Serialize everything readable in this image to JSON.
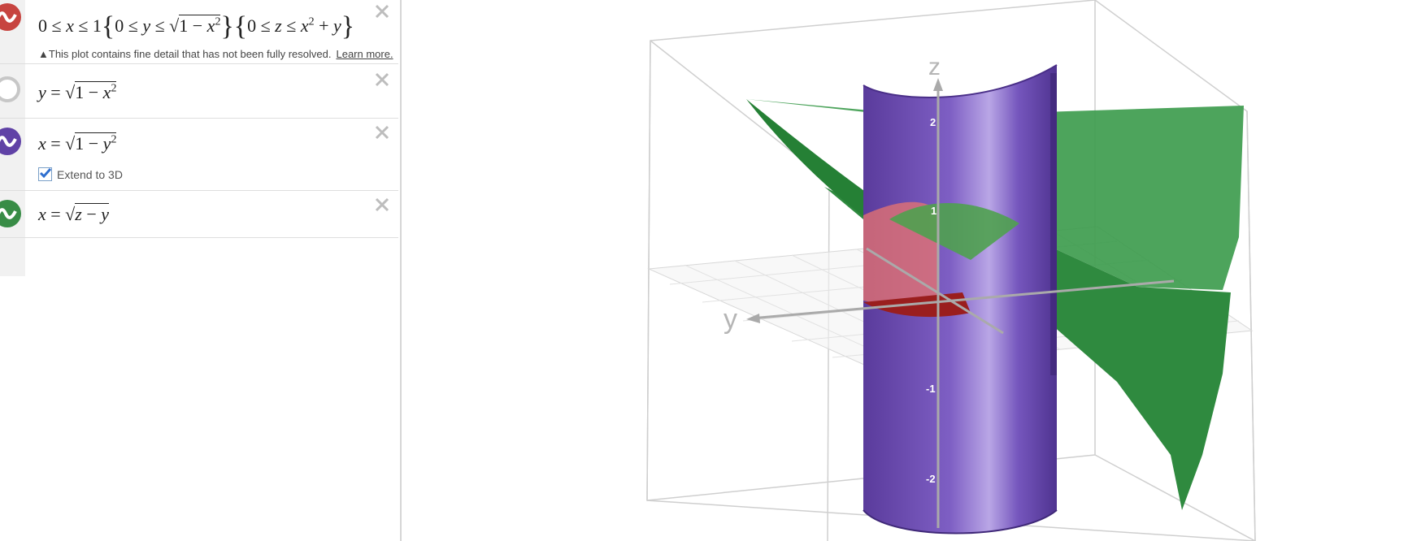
{
  "expressions": [
    {
      "color": "#c74440",
      "math": [
        "0 ≤ ",
        "x",
        " ≤ 1",
        "{",
        "0 ≤ ",
        "y",
        " ≤ √",
        "1 − ",
        "x",
        "2",
        "}",
        "{",
        "0 ≤ ",
        "z",
        " ≤ ",
        "x",
        "2",
        " + ",
        "y",
        "}"
      ],
      "warning": "This plot contains fine detail that has not been fully resolved.",
      "learn_more": "Learn more."
    },
    {
      "color": "#c7c7c7",
      "math": [
        "y",
        " = √",
        "1 − ",
        "x",
        "2"
      ]
    },
    {
      "color": "#6042a6",
      "math": [
        "x",
        " = √",
        "1 − ",
        "y",
        "2"
      ],
      "extend_label": "Extend to 3D",
      "extend_checked": true
    },
    {
      "color": "#388c46",
      "math": [
        "x",
        " = √",
        "z",
        " − ",
        "y"
      ]
    }
  ],
  "graph": {
    "axis_labels": {
      "z": "z",
      "y": "y"
    },
    "z_ticks": [
      "2",
      "1",
      "-1",
      "-2"
    ],
    "colors": {
      "cylinder": "#6042a6",
      "surface": "#3a9a4a",
      "region": "#e9746f",
      "plane": "#dcdcdc"
    }
  }
}
